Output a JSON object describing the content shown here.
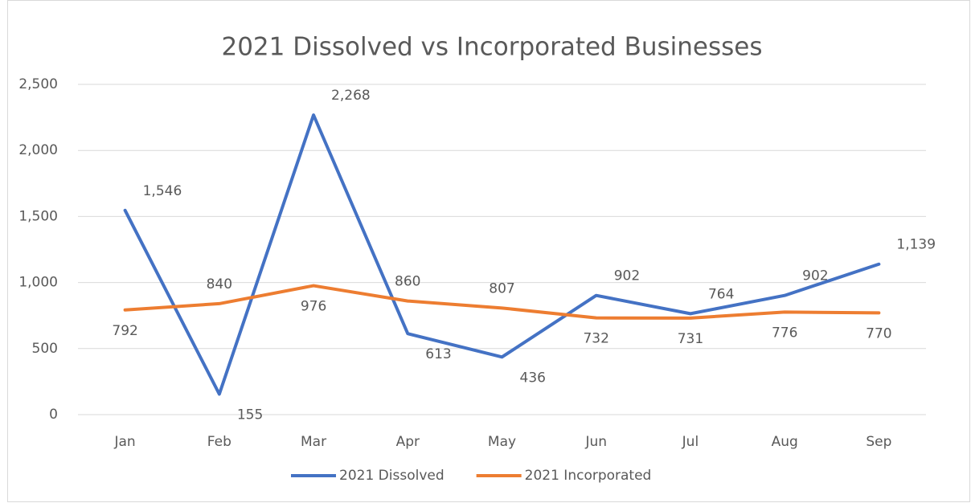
{
  "chart_data": {
    "type": "line",
    "title": "2021 Dissolved vs Incorporated Businesses",
    "categories": [
      "Jan",
      "Feb",
      "Mar",
      "Apr",
      "May",
      "Jun",
      "Jul",
      "Aug",
      "Sep"
    ],
    "series": [
      {
        "name": "2021 Dissolved",
        "color": "#4472c4",
        "values": [
          1546,
          155,
          2268,
          613,
          436,
          902,
          764,
          902,
          1139
        ],
        "value_labels": [
          "1,546",
          "155",
          "2,268",
          "613",
          "436",
          "902",
          "764",
          "902",
          "1,139"
        ]
      },
      {
        "name": "2021 Incorporated",
        "color": "#ed7d31",
        "values": [
          792,
          840,
          976,
          860,
          807,
          732,
          731,
          776,
          770
        ],
        "value_labels": [
          "792",
          "840",
          "976",
          "860",
          "807",
          "732",
          "731",
          "776",
          "770"
        ]
      }
    ],
    "ylim": [
      0,
      2500
    ],
    "yticks": [
      0,
      500,
      {
        "value": 1000,
        "label": "1,000"
      },
      {
        "value": 1500,
        "label": "1,500"
      },
      {
        "value": 2000,
        "label": "2,000"
      },
      {
        "value": 2500,
        "label": "2,500"
      }
    ],
    "grid": true,
    "legend": "bottom"
  }
}
